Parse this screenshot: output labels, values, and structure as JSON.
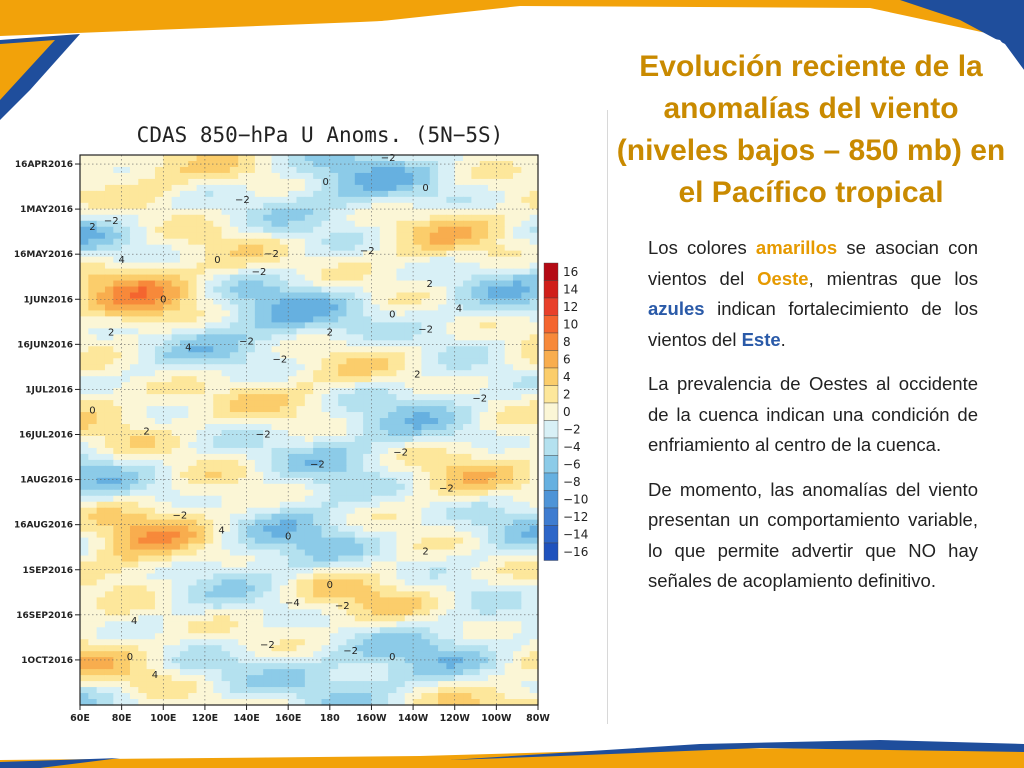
{
  "slide": {
    "title": "Evolución reciente de la anomalías del viento (niveles bajos – 850 mb) en el Pacífico tropical",
    "colors": {
      "accent_orange": "#f2a20a",
      "accent_blue": "#1f4e9c",
      "title": "#c98a00"
    },
    "paragraphs": [
      {
        "p1_a": "Los colores ",
        "p1_amarillos": "amarillos",
        "p1_b": " se asocian con vientos del ",
        "p1_oeste": "Oeste",
        "p1_c": ", mientras que los ",
        "p1_azules": "azules",
        "p1_d": " indican fortalecimiento de los vientos del ",
        "p1_este": "Este",
        "p1_e": "."
      },
      {
        "text": "La prevalencia de Oestes al occidente de la cuenca indican una condición de enfriamiento al centro de la cuenca."
      },
      {
        "text": "De momento, las anomalías del viento presentan un comportamiento variable, lo que permite advertir que NO hay señales de acoplamiento definitivo."
      }
    ]
  },
  "chart_data": {
    "type": "heatmap",
    "title": "CDAS 850−hPa U Anoms. (5N−5S)",
    "x_ticks": [
      "60E",
      "80E",
      "100E",
      "120E",
      "140E",
      "160E",
      "180",
      "160W",
      "140W",
      "120W",
      "100W",
      "80W"
    ],
    "y_ticks": [
      "16APR2016",
      "1MAY2016",
      "16MAY2016",
      "1JUN2016",
      "16JUN2016",
      "1JUL2016",
      "16JUL2016",
      "1AUG2016",
      "16AUG2016",
      "1SEP2016",
      "16SEP2016",
      "1OCT2016"
    ],
    "colorbar": {
      "levels": [
        "16",
        "14",
        "12",
        "10",
        "8",
        "6",
        "4",
        "2",
        "0",
        "−2",
        "−4",
        "−6",
        "−8",
        "−10",
        "−12",
        "−14",
        "−16"
      ],
      "colors": [
        "#b40a14",
        "#d01f1a",
        "#e8402a",
        "#f4652f",
        "#f7893a",
        "#f8ad4e",
        "#fbcd6b",
        "#fde79b",
        "#fbf6d6",
        "#d8f0f6",
        "#b4e1ef",
        "#8ccbe8",
        "#66b0e0",
        "#4e94d7",
        "#3e7cd0",
        "#2d66c8",
        "#1f52bd"
      ]
    },
    "grid": true,
    "contour_labels": [
      {
        "lon": 208,
        "day": 2,
        "text": "−2"
      },
      {
        "lon": 178,
        "day": 10,
        "text": "0"
      },
      {
        "lon": 138,
        "day": 16,
        "text": "−2"
      },
      {
        "lon": 226,
        "day": 12,
        "text": "0"
      },
      {
        "lon": 75,
        "day": 23,
        "text": "−2"
      },
      {
        "lon": 66,
        "day": 25,
        "text": "2"
      },
      {
        "lon": 80,
        "day": 36,
        "text": "4"
      },
      {
        "lon": 126,
        "day": 36,
        "text": "0"
      },
      {
        "lon": 152,
        "day": 34,
        "text": "−2"
      },
      {
        "lon": 198,
        "day": 33,
        "text": "−2"
      },
      {
        "lon": 100,
        "day": 49,
        "text": "0"
      },
      {
        "lon": 146,
        "day": 40,
        "text": "−2"
      },
      {
        "lon": 228,
        "day": 44,
        "text": "2"
      },
      {
        "lon": 242,
        "day": 52,
        "text": "4"
      },
      {
        "lon": 210,
        "day": 54,
        "text": "0"
      },
      {
        "lon": 75,
        "day": 60,
        "text": "2"
      },
      {
        "lon": 112,
        "day": 65,
        "text": "4"
      },
      {
        "lon": 140,
        "day": 63,
        "text": "−2"
      },
      {
        "lon": 156,
        "day": 69,
        "text": "−2"
      },
      {
        "lon": 180,
        "day": 60,
        "text": "2"
      },
      {
        "lon": 226,
        "day": 59,
        "text": "−2"
      },
      {
        "lon": 222,
        "day": 74,
        "text": "2"
      },
      {
        "lon": 252,
        "day": 82,
        "text": "−2"
      },
      {
        "lon": 66,
        "day": 86,
        "text": "0"
      },
      {
        "lon": 92,
        "day": 93,
        "text": "2"
      },
      {
        "lon": 148,
        "day": 94,
        "text": "−2"
      },
      {
        "lon": 174,
        "day": 104,
        "text": "−2"
      },
      {
        "lon": 214,
        "day": 100,
        "text": "−2"
      },
      {
        "lon": 236,
        "day": 112,
        "text": "−2"
      },
      {
        "lon": 108,
        "day": 121,
        "text": "−2"
      },
      {
        "lon": 128,
        "day": 126,
        "text": "4"
      },
      {
        "lon": 160,
        "day": 128,
        "text": "0"
      },
      {
        "lon": 226,
        "day": 133,
        "text": "2"
      },
      {
        "lon": 180,
        "day": 144,
        "text": "0"
      },
      {
        "lon": 162,
        "day": 150,
        "text": "−4"
      },
      {
        "lon": 186,
        "day": 151,
        "text": "−2"
      },
      {
        "lon": 86,
        "day": 156,
        "text": "4"
      },
      {
        "lon": 150,
        "day": 164,
        "text": "−2"
      },
      {
        "lon": 190,
        "day": 166,
        "text": "−2"
      },
      {
        "lon": 84,
        "day": 168,
        "text": "0"
      },
      {
        "lon": 96,
        "day": 174,
        "text": "4"
      },
      {
        "lon": 210,
        "day": 168,
        "text": "0"
      }
    ]
  }
}
